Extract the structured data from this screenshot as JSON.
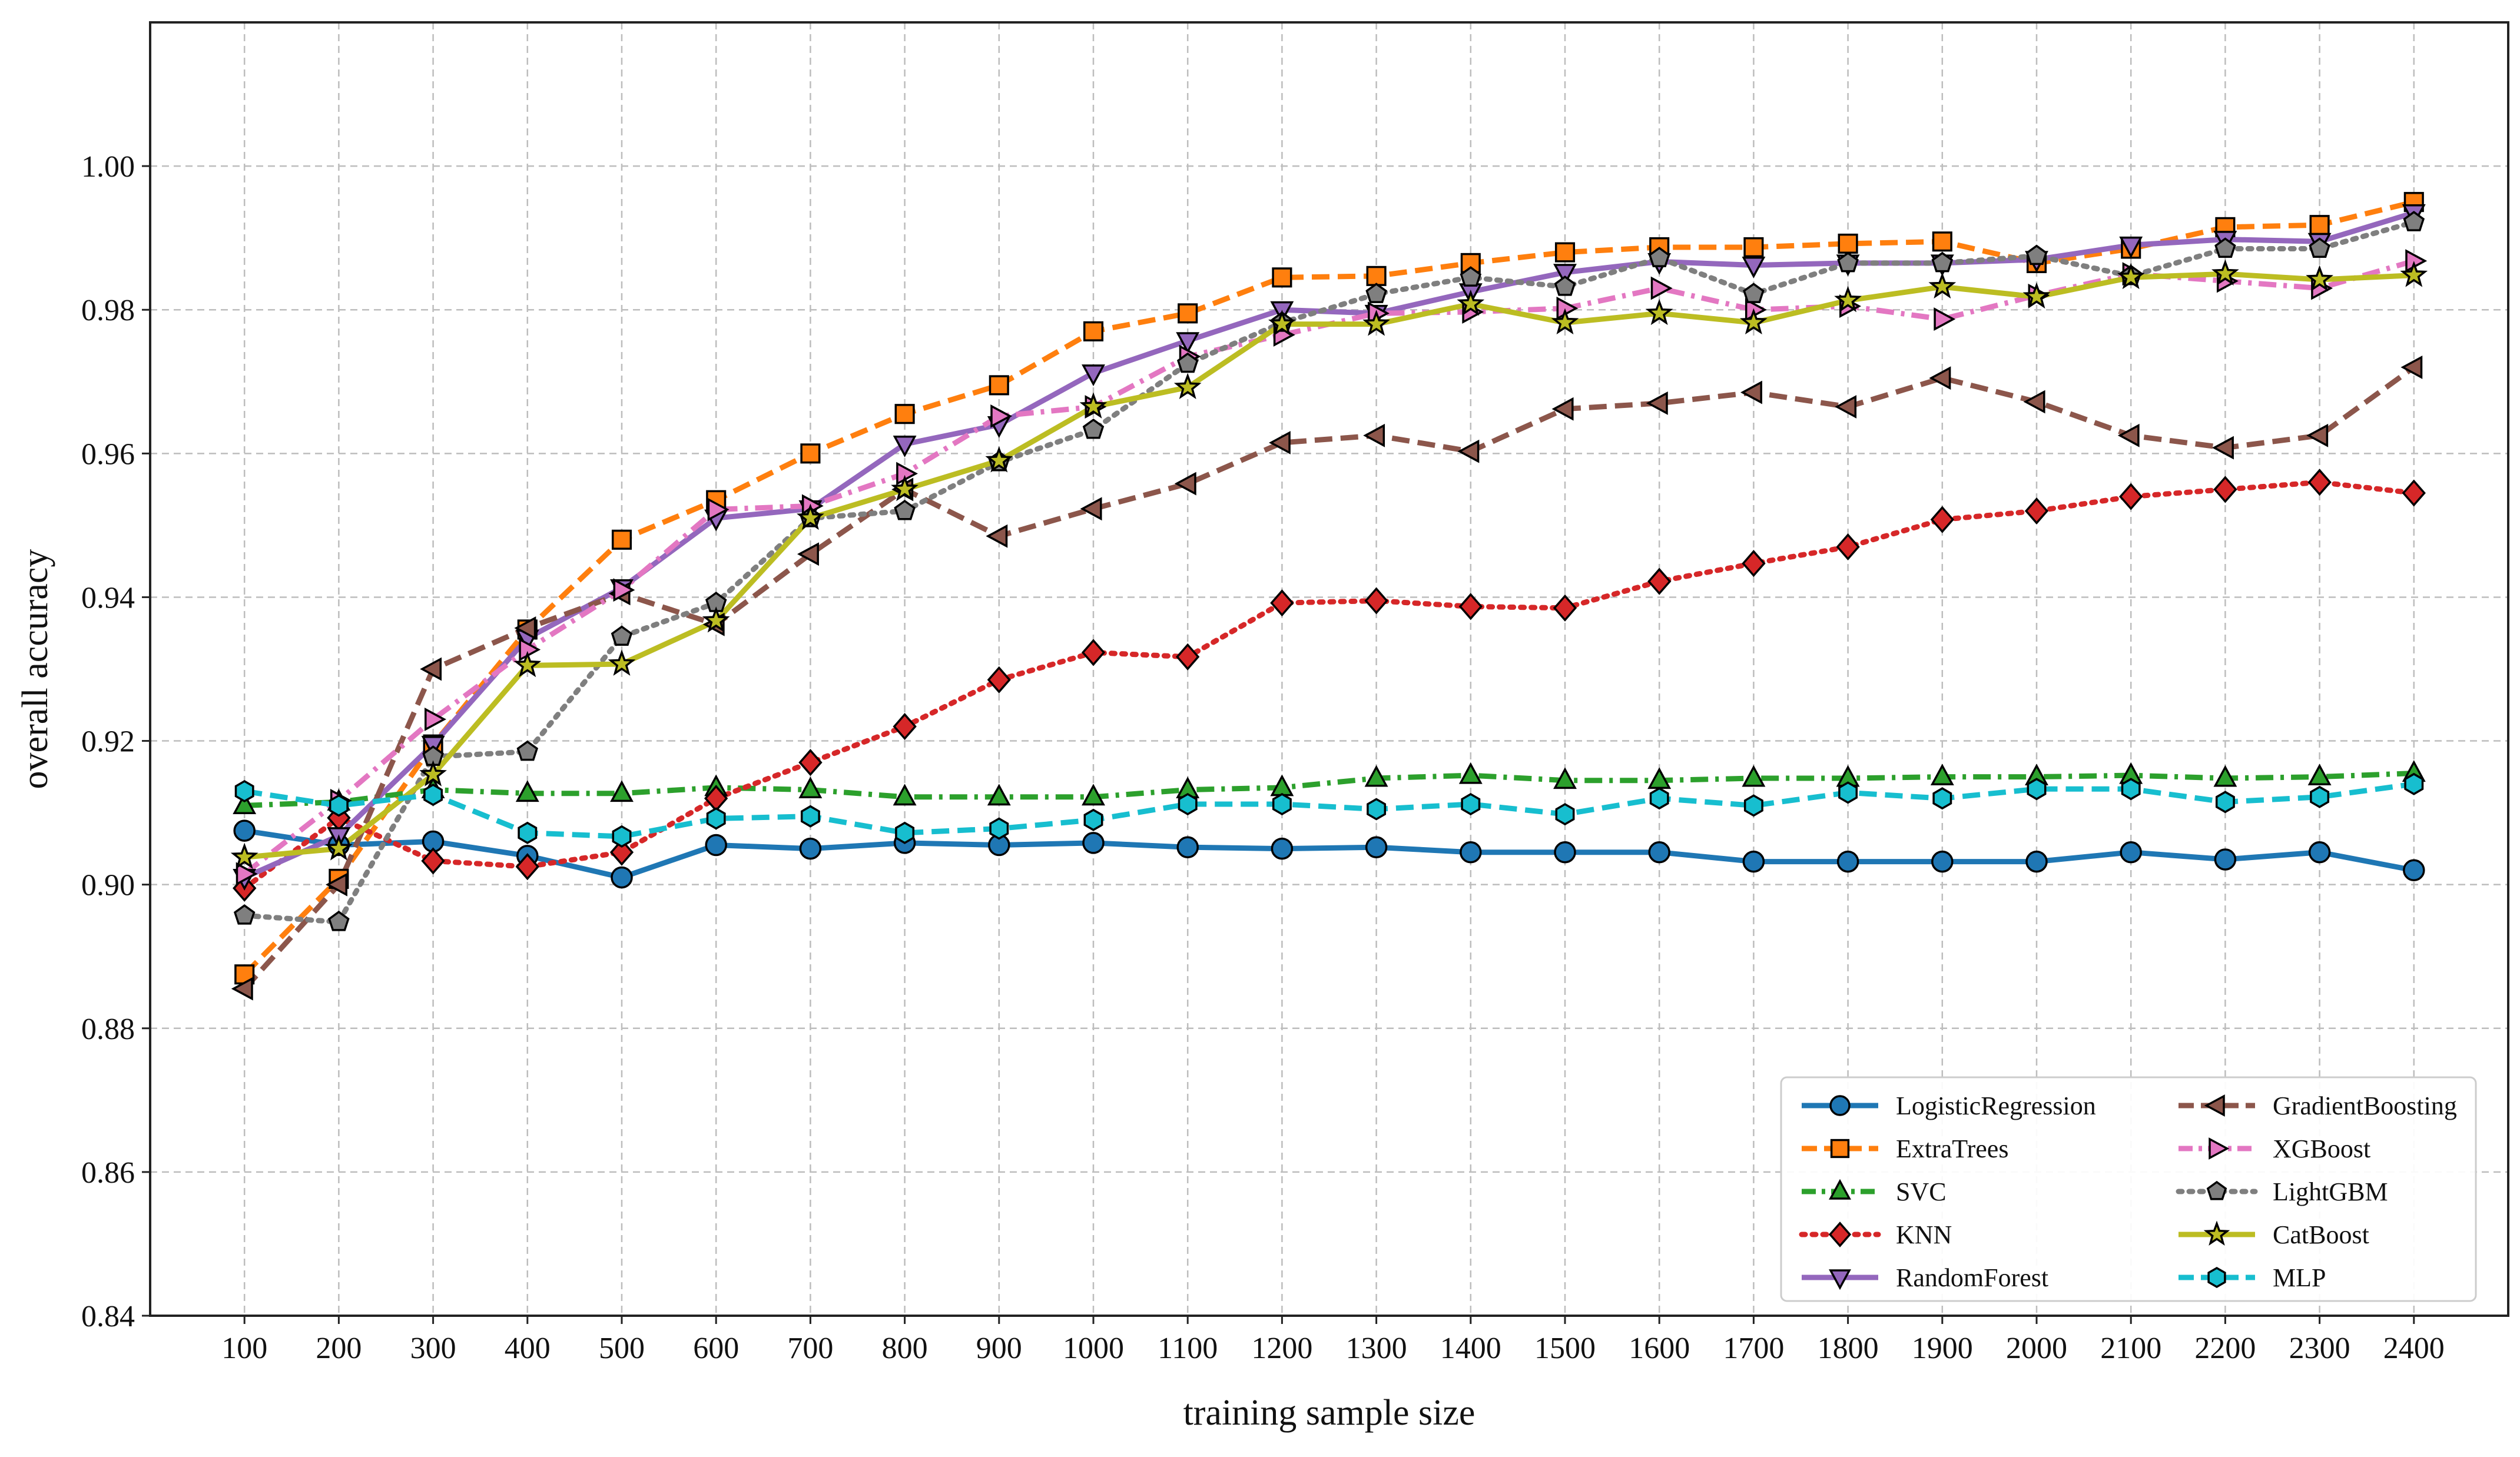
{
  "chart_data": {
    "type": "line",
    "title": "",
    "xlabel": "training sample size",
    "ylabel": "overall accuracy",
    "x": [
      100,
      200,
      300,
      400,
      500,
      600,
      700,
      800,
      900,
      1000,
      1100,
      1200,
      1300,
      1400,
      1500,
      1600,
      1700,
      1800,
      1900,
      2000,
      2100,
      2200,
      2300,
      2400
    ],
    "xlim": [
      0,
      2500
    ],
    "ylim": [
      0.84,
      1.02
    ],
    "yticks": [
      "0.84",
      "0.86",
      "0.88",
      "0.90",
      "0.92",
      "0.94",
      "0.96",
      "0.98",
      "1.00"
    ],
    "ytick_values": [
      0.84,
      0.86,
      0.88,
      0.9,
      0.92,
      0.94,
      0.96,
      0.98,
      1.0
    ],
    "grid": true,
    "legend_position": "bottom-right",
    "series": [
      {
        "name": "LogisticRegression",
        "color": "#1f77b4",
        "dash": "solid",
        "marker": "circle",
        "values": [
          0.9075,
          0.9055,
          0.906,
          0.904,
          0.901,
          0.9055,
          0.905,
          0.9058,
          0.9055,
          0.9058,
          0.9052,
          0.905,
          0.9052,
          0.9045,
          0.9045,
          0.9045,
          0.9032,
          0.9032,
          0.9032,
          0.9032,
          0.9045,
          0.9035,
          0.9045,
          0.902
        ]
      },
      {
        "name": "ExtraTrees",
        "color": "#ff7f0e",
        "dash": "dashed",
        "marker": "square",
        "values": [
          0.8875,
          0.9008,
          0.9195,
          0.9355,
          0.948,
          0.9535,
          0.96,
          0.9655,
          0.9695,
          0.977,
          0.9795,
          0.9845,
          0.9847,
          0.9865,
          0.988,
          0.9887,
          0.9887,
          0.9892,
          0.9895,
          0.9865,
          0.9885,
          0.9915,
          0.9918,
          0.995
        ]
      },
      {
        "name": "SVC",
        "color": "#2ca02c",
        "dash": "dashdot",
        "marker": "triangle-up",
        "values": [
          0.911,
          0.9115,
          0.9132,
          0.9127,
          0.9127,
          0.9135,
          0.9132,
          0.9122,
          0.9122,
          0.9122,
          0.9132,
          0.9135,
          0.9148,
          0.9152,
          0.9145,
          0.9145,
          0.9148,
          0.9148,
          0.915,
          0.915,
          0.9152,
          0.9148,
          0.915,
          0.9155
        ]
      },
      {
        "name": "KNN",
        "color": "#d62728",
        "dash": "dotted",
        "marker": "diamond",
        "values": [
          0.8995,
          0.9093,
          0.9033,
          0.9025,
          0.9045,
          0.912,
          0.917,
          0.922,
          0.9285,
          0.9323,
          0.9317,
          0.9392,
          0.9395,
          0.9387,
          0.9385,
          0.9422,
          0.9447,
          0.947,
          0.9508,
          0.952,
          0.954,
          0.955,
          0.956,
          0.9545
        ]
      },
      {
        "name": "RandomForest",
        "color": "#9467bd",
        "dash": "solid",
        "marker": "triangle-down",
        "values": [
          0.901,
          0.9068,
          0.9195,
          0.9343,
          0.9413,
          0.951,
          0.9523,
          0.9613,
          0.964,
          0.9712,
          0.9757,
          0.98,
          0.9795,
          0.9825,
          0.9852,
          0.9867,
          0.9862,
          0.9865,
          0.9865,
          0.987,
          0.989,
          0.9898,
          0.9895,
          0.9935
        ]
      },
      {
        "name": "GradientBoosting",
        "color": "#8c564b",
        "dash": "dashed",
        "marker": "triangle-left",
        "values": [
          0.8855,
          0.9,
          0.93,
          0.9357,
          0.9405,
          0.9362,
          0.946,
          0.955,
          0.9485,
          0.9523,
          0.9558,
          0.9615,
          0.9625,
          0.9603,
          0.9662,
          0.967,
          0.9685,
          0.9665,
          0.9705,
          0.9672,
          0.9625,
          0.9608,
          0.9625,
          0.972
        ]
      },
      {
        "name": "XGBoost",
        "color": "#e377c2",
        "dash": "dashdot",
        "marker": "triangle-right",
        "values": [
          0.9015,
          0.9117,
          0.923,
          0.9327,
          0.941,
          0.9522,
          0.9527,
          0.9572,
          0.9652,
          0.9665,
          0.9735,
          0.9765,
          0.9795,
          0.9797,
          0.9802,
          0.983,
          0.98,
          0.9805,
          0.9787,
          0.982,
          0.985,
          0.984,
          0.983,
          0.9868
        ]
      },
      {
        "name": "LightGBM",
        "color": "#7f7f7f",
        "dash": "dotted",
        "marker": "pentagon",
        "values": [
          0.8957,
          0.8948,
          0.9178,
          0.9185,
          0.9345,
          0.9392,
          0.951,
          0.952,
          0.9588,
          0.9633,
          0.9725,
          0.9782,
          0.9822,
          0.9845,
          0.9832,
          0.9872,
          0.9822,
          0.9865,
          0.9865,
          0.9875,
          0.9847,
          0.9885,
          0.9885,
          0.9922
        ]
      },
      {
        "name": "CatBoost",
        "color": "#bcbd22",
        "dash": "solid",
        "marker": "star",
        "values": [
          0.9038,
          0.905,
          0.9153,
          0.9305,
          0.9307,
          0.9367,
          0.951,
          0.955,
          0.959,
          0.9665,
          0.9692,
          0.978,
          0.978,
          0.9808,
          0.9782,
          0.9795,
          0.9782,
          0.9813,
          0.9832,
          0.9818,
          0.9845,
          0.985,
          0.9842,
          0.9848
        ]
      },
      {
        "name": "MLP",
        "color": "#17becf",
        "dash": "dashed",
        "marker": "hexagon",
        "values": [
          0.913,
          0.911,
          0.9125,
          0.9072,
          0.9067,
          0.9092,
          0.9095,
          0.9072,
          0.9078,
          0.909,
          0.9112,
          0.9112,
          0.9105,
          0.9112,
          0.9098,
          0.912,
          0.911,
          0.9128,
          0.912,
          0.9133,
          0.9133,
          0.9115,
          0.9122,
          0.914
        ]
      }
    ]
  }
}
